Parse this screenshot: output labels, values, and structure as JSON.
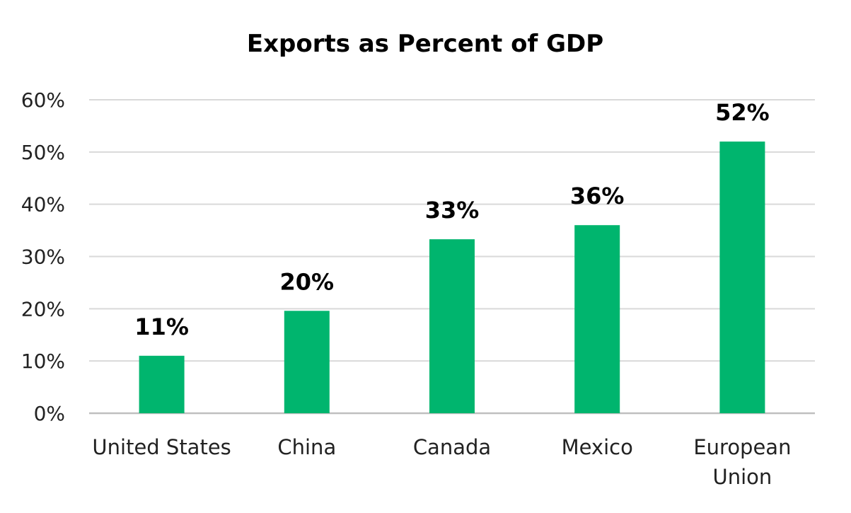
{
  "chart_data": {
    "type": "bar",
    "title": "Exports as Percent of GDP",
    "xlabel": "",
    "ylabel": "",
    "categories": [
      [
        "United States"
      ],
      [
        "China"
      ],
      [
        "Canada"
      ],
      [
        "Mexico"
      ],
      [
        "European",
        "Union"
      ]
    ],
    "values": [
      11,
      19.6,
      33.3,
      36,
      52
    ],
    "data_labels": [
      "11%",
      "20%",
      "33%",
      "36%",
      "52%"
    ],
    "ylim": [
      0,
      60
    ],
    "yticks": [
      0,
      10,
      20,
      30,
      40,
      50,
      60
    ],
    "ytick_labels": [
      "0%",
      "10%",
      "20%",
      "30%",
      "40%",
      "50%",
      "60%"
    ],
    "grid": true,
    "legend": "none",
    "colors": {
      "bar": "#00b56e",
      "grid": "#d9d9d9",
      "axis": "#bfbfbf"
    }
  }
}
